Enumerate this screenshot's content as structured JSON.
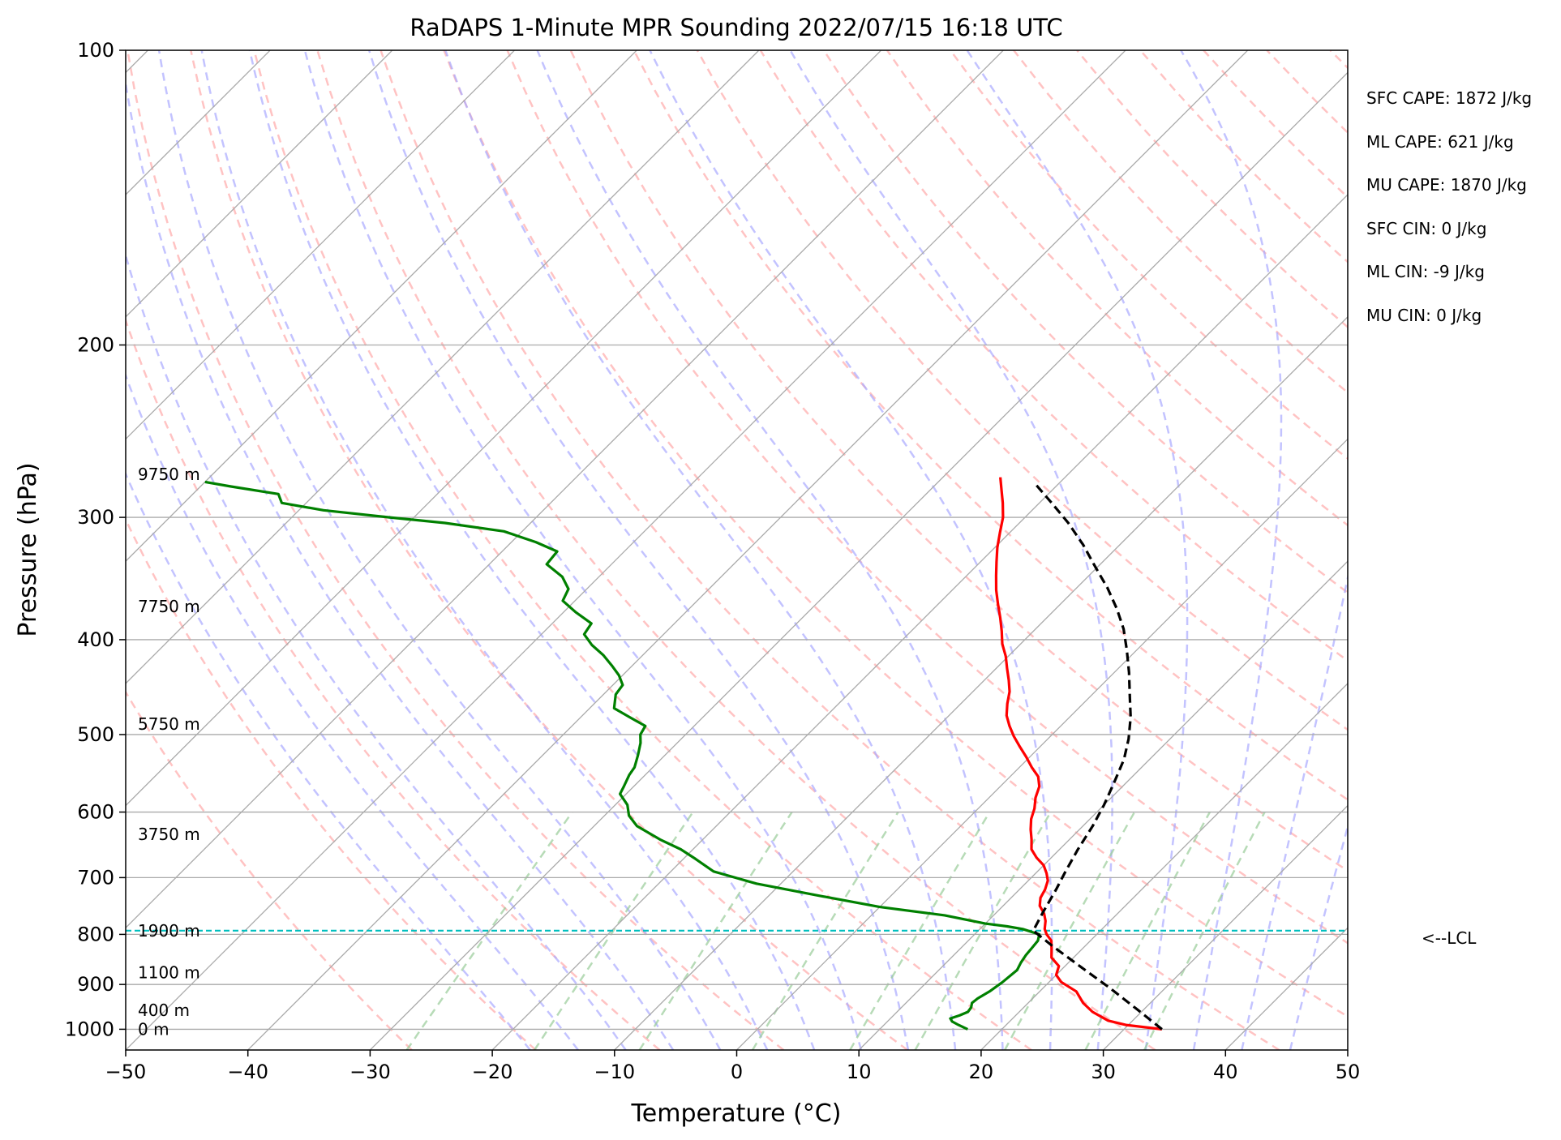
{
  "chart_data": {
    "type": "line",
    "title": "RaDAPS 1-Minute MPR Sounding 2022/07/15 16:18 UTC",
    "xlabel": "Temperature (°C)",
    "ylabel": "Pressure (hPa)",
    "xlim": [
      -50,
      50
    ],
    "ylim": [
      1050,
      100
    ],
    "y_scale": "log",
    "x_ticks": [
      -50,
      -40,
      -30,
      -20,
      -10,
      0,
      10,
      20,
      30,
      40,
      50
    ],
    "x_tick_labels": [
      "−50",
      "−40",
      "−30",
      "−20",
      "−10",
      "0",
      "10",
      "20",
      "30",
      "40",
      "50"
    ],
    "y_ticks": [
      100,
      200,
      300,
      400,
      500,
      600,
      700,
      800,
      900,
      1000
    ],
    "y_tick_labels": [
      "100",
      "200",
      "300",
      "400",
      "500",
      "600",
      "700",
      "800",
      "900",
      "1000"
    ],
    "skew_degrees": 45,
    "grid": true,
    "temperature": {
      "color": "#ff0000",
      "points": [
        [
          33.1,
          1000
        ],
        [
          29.8,
          990
        ],
        [
          28,
          980
        ],
        [
          26,
          960
        ],
        [
          24.5,
          940
        ],
        [
          23,
          915
        ],
        [
          21,
          895
        ],
        [
          20,
          880
        ],
        [
          19.5,
          862
        ],
        [
          18.2,
          845
        ],
        [
          17.5,
          828
        ],
        [
          16.8,
          812
        ],
        [
          15.9,
          800
        ],
        [
          15.3,
          790
        ],
        [
          14.7,
          775
        ],
        [
          14,
          762
        ],
        [
          13,
          748
        ],
        [
          12.4,
          734
        ],
        [
          12.1,
          720
        ],
        [
          11.6,
          705
        ],
        [
          10.9,
          693
        ],
        [
          10,
          680
        ],
        [
          8.8,
          668
        ],
        [
          7.7,
          655
        ],
        [
          6.9,
          640
        ],
        [
          6,
          625
        ],
        [
          5.2,
          610
        ],
        [
          4.6,
          595
        ],
        [
          3.8,
          580
        ],
        [
          3.2,
          565
        ],
        [
          2.3,
          552
        ],
        [
          1,
          540
        ],
        [
          -0.3,
          527
        ],
        [
          -1.6,
          515
        ],
        [
          -3,
          502
        ],
        [
          -4.2,
          490
        ],
        [
          -5.3,
          478
        ],
        [
          -6.2,
          465
        ],
        [
          -7,
          452
        ],
        [
          -8,
          440
        ],
        [
          -9.1,
          428
        ],
        [
          -10.2,
          416
        ],
        [
          -11.5,
          404
        ],
        [
          -12.6,
          392
        ],
        [
          -13.8,
          380
        ],
        [
          -15.1,
          368
        ],
        [
          -16.4,
          356
        ],
        [
          -17.6,
          344
        ],
        [
          -18.7,
          333
        ],
        [
          -19.8,
          322
        ],
        [
          -20.8,
          311
        ],
        [
          -21.8,
          300
        ],
        [
          -23,
          290
        ],
        [
          -24.2,
          281
        ],
        [
          -25.3,
          273
        ]
      ]
    },
    "dewpoint": {
      "color": "#008000",
      "points": [
        [
          17.2,
          1000
        ],
        [
          16.1,
          990
        ],
        [
          15.3,
          982
        ],
        [
          14.9,
          975
        ],
        [
          15.4,
          968
        ],
        [
          15.8,
          960
        ],
        [
          15.7,
          950
        ],
        [
          15.4,
          940
        ],
        [
          15.5,
          930
        ],
        [
          15.9,
          915
        ],
        [
          16.2,
          895
        ],
        [
          16.4,
          870
        ],
        [
          16.1,
          855
        ],
        [
          15.9,
          840
        ],
        [
          15.8,
          825
        ],
        [
          15.7,
          812
        ],
        [
          15.3,
          800
        ],
        [
          13.5,
          790
        ],
        [
          12,
          785
        ],
        [
          10,
          780
        ],
        [
          6,
          765
        ],
        [
          0,
          750
        ],
        [
          -6,
          730
        ],
        [
          -12,
          710
        ],
        [
          -16.5,
          690
        ],
        [
          -19,
          670
        ],
        [
          -21,
          655
        ],
        [
          -23.5,
          640
        ],
        [
          -26.5,
          620
        ],
        [
          -28,
          605
        ],
        [
          -29,
          590
        ],
        [
          -30.5,
          575
        ],
        [
          -30.8,
          565
        ],
        [
          -31.3,
          550
        ],
        [
          -31.5,
          540
        ],
        [
          -32.2,
          525
        ],
        [
          -33,
          510
        ],
        [
          -33.7,
          500
        ],
        [
          -34,
          490
        ],
        [
          -36,
          480
        ],
        [
          -38,
          470
        ],
        [
          -39,
          455
        ],
        [
          -39.2,
          445
        ],
        [
          -40.3,
          435
        ],
        [
          -41.7,
          425
        ],
        [
          -43.2,
          415
        ],
        [
          -45,
          405
        ],
        [
          -46.5,
          395
        ],
        [
          -46.8,
          385
        ],
        [
          -49,
          375
        ],
        [
          -51,
          365
        ],
        [
          -51.5,
          355
        ],
        [
          -53,
          345
        ],
        [
          -55.3,
          335
        ],
        [
          -55.5,
          325
        ],
        [
          -58,
          318
        ],
        [
          -61.5,
          310
        ],
        [
          -67,
          304
        ],
        [
          -72,
          300
        ],
        [
          -78,
          295
        ],
        [
          -82,
          290
        ],
        [
          -83,
          284
        ],
        [
          -87.5,
          279
        ],
        [
          -90,
          276
        ]
      ]
    },
    "parcel": {
      "color": "#000000",
      "points": [
        [
          33.1,
          1000
        ],
        [
          29.5,
          955
        ],
        [
          25.5,
          908
        ],
        [
          21.5,
          865
        ],
        [
          17.6,
          825
        ],
        [
          14.5,
          793
        ],
        [
          13.8,
          760
        ],
        [
          13,
          720
        ],
        [
          12.3,
          690
        ],
        [
          11.5,
          655
        ],
        [
          10.8,
          620
        ],
        [
          10,
          590
        ],
        [
          9,
          560
        ],
        [
          7.9,
          530
        ],
        [
          6.6,
          505
        ],
        [
          5,
          480
        ],
        [
          3.3,
          458
        ],
        [
          1.2,
          432
        ],
        [
          -0.8,
          410
        ],
        [
          -2.8,
          390
        ],
        [
          -5,
          372
        ],
        [
          -7.5,
          354
        ],
        [
          -10.2,
          337
        ],
        [
          -13,
          320
        ],
        [
          -16,
          304
        ],
        [
          -19,
          290
        ],
        [
          -22.2,
          276
        ]
      ]
    },
    "lcl_pressure": 793,
    "lcl_label": "<--LCL",
    "height_labels": [
      {
        "label": "9750 m",
        "p": 271
      },
      {
        "label": "7750 m",
        "p": 370
      },
      {
        "label": "5750 m",
        "p": 488
      },
      {
        "label": "3750 m",
        "p": 632
      },
      {
        "label": "1900 m",
        "p": 793
      },
      {
        "label": "1100 m",
        "p": 875
      },
      {
        "label": "400 m",
        "p": 956
      },
      {
        "label": "0 m",
        "p": 1000
      }
    ],
    "annotations": [
      "SFC CAPE: 1872 J/kg",
      "ML CAPE: 621 J/kg",
      "MU CAPE: 1870 J/kg",
      "SFC CIN: 0 J/kg",
      "ML CIN: -9 J/kg",
      "MU CIN: 0 J/kg"
    ],
    "colors": {
      "isotherm": "#aaaaaa",
      "isobar": "#aaaaaa",
      "dry_adiabat": "#ffaaaa",
      "moist_adiabat": "#aaaaff",
      "mixing_ratio": "#99cc99",
      "lcl_line": "#00bfbf"
    }
  }
}
